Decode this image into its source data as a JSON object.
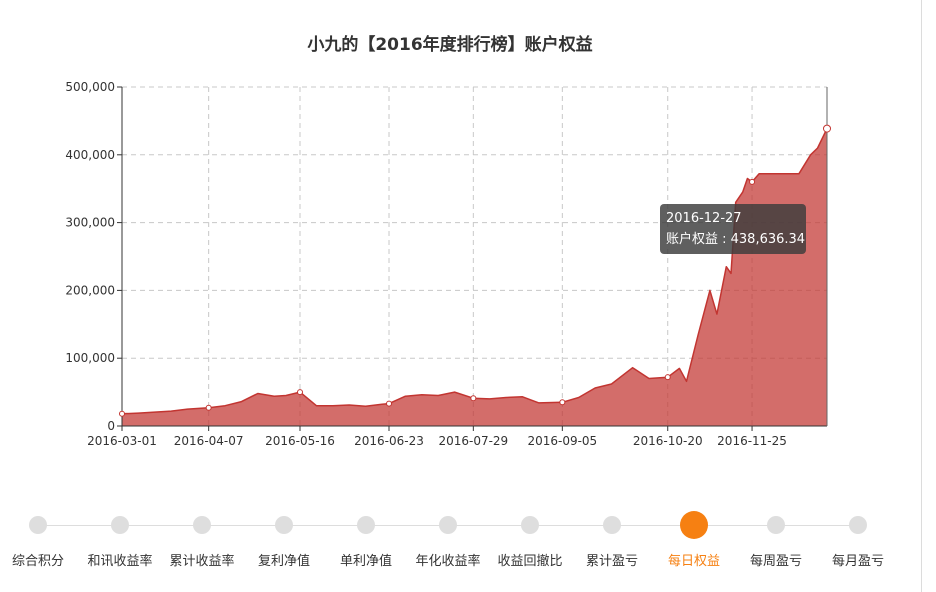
{
  "chart_data": {
    "type": "area",
    "title": "小九的【2016年度排行榜】账户权益",
    "xlabel": "",
    "ylabel": "",
    "ylim": [
      0,
      500000
    ],
    "yticks": [
      0,
      100000,
      200000,
      300000,
      400000,
      500000
    ],
    "ytick_labels": [
      "0",
      "100,000",
      "200,000",
      "300,000",
      "400,000",
      "500,000"
    ],
    "xlim": [
      "2016-03-01",
      "2016-12-27"
    ],
    "xtick_labels": [
      "2016-03-01",
      "2016-04-07",
      "2016-05-16",
      "2016-06-23",
      "2016-07-29",
      "2016-09-05",
      "2016-10-20",
      "2016-11-25"
    ],
    "grid": true,
    "color": "#c23531",
    "series": [
      {
        "name": "账户权益",
        "x": [
          "2016-03-01",
          "2016-03-08",
          "2016-03-15",
          "2016-03-22",
          "2016-03-29",
          "2016-04-07",
          "2016-04-14",
          "2016-04-21",
          "2016-04-28",
          "2016-05-05",
          "2016-05-10",
          "2016-05-16",
          "2016-05-23",
          "2016-05-30",
          "2016-06-06",
          "2016-06-13",
          "2016-06-20",
          "2016-06-23",
          "2016-06-30",
          "2016-07-07",
          "2016-07-14",
          "2016-07-21",
          "2016-07-29",
          "2016-08-05",
          "2016-08-12",
          "2016-08-19",
          "2016-08-26",
          "2016-09-05",
          "2016-09-12",
          "2016-09-19",
          "2016-09-26",
          "2016-10-05",
          "2016-10-12",
          "2016-10-20",
          "2016-10-25",
          "2016-10-28",
          "2016-11-02",
          "2016-11-07",
          "2016-11-10",
          "2016-11-14",
          "2016-11-16",
          "2016-11-18",
          "2016-11-21",
          "2016-11-23",
          "2016-11-25",
          "2016-11-28",
          "2016-12-02",
          "2016-12-09",
          "2016-12-15",
          "2016-12-20",
          "2016-12-23",
          "2016-12-27"
        ],
        "values": [
          18000,
          19000,
          20500,
          22000,
          25000,
          27000,
          30000,
          36000,
          48000,
          44000,
          45000,
          50000,
          30000,
          30000,
          31000,
          29000,
          32000,
          33000,
          44000,
          46000,
          45000,
          50000,
          41000,
          40000,
          42000,
          43000,
          34000,
          35000,
          42000,
          56000,
          62000,
          86000,
          70000,
          72000,
          85000,
          66000,
          135000,
          200000,
          165000,
          235000,
          225000,
          330000,
          345000,
          365000,
          360000,
          372000,
          372000,
          372000,
          372000,
          400000,
          410000,
          438636.34
        ]
      }
    ],
    "markers": [
      {
        "x": "2016-03-01",
        "y": 18000
      },
      {
        "x": "2016-04-07",
        "y": 27000
      },
      {
        "x": "2016-05-16",
        "y": 50000
      },
      {
        "x": "2016-06-23",
        "y": 33000
      },
      {
        "x": "2016-07-29",
        "y": 41000
      },
      {
        "x": "2016-09-05",
        "y": 35000
      },
      {
        "x": "2016-10-20",
        "y": 72000
      },
      {
        "x": "2016-11-25",
        "y": 360000
      },
      {
        "x": "2016-12-27",
        "y": 438636.34
      }
    ]
  },
  "tooltip": {
    "date": "2016-12-27",
    "label": "账户权益 : 438,636.34"
  },
  "timeline": {
    "active_index": 8,
    "active_color": "#f68012",
    "items": [
      "综合积分",
      "和讯收益率",
      "累计收益率",
      "复利净值",
      "单利净值",
      "年化收益率",
      "收益回撤比",
      "累计盈亏",
      "每日权益",
      "每周盈亏",
      "每月盈亏"
    ]
  }
}
